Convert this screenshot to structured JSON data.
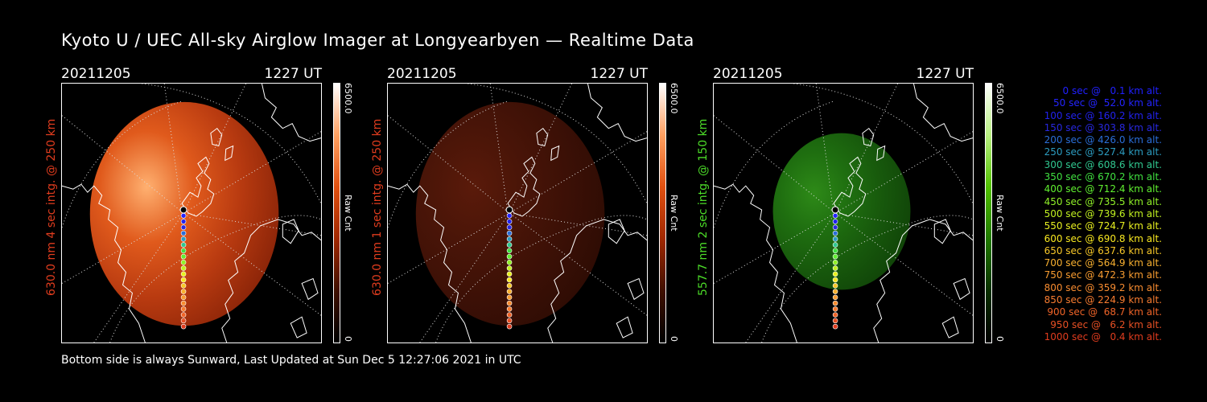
{
  "title": "Kyoto U / UEC All-sky Airglow Imager at Longyearbyen — Realtime Data",
  "footer": "Bottom side is always Sunward, Last Updated at Sun Dec  5 12:27:06 2021 in UTC",
  "panels": [
    {
      "date": "20211205",
      "time": "1227 UT",
      "label": "630.0 nm 4 sec intg. @ 250 km",
      "label_color": "#e03c1e",
      "colorbar_max": "6500.0",
      "colorbar_min": "0",
      "colorbar_unit": "Raw Cnt",
      "tint": "red-bright"
    },
    {
      "date": "20211205",
      "time": "1227 UT",
      "label": "630.0 nm 1 sec intg. @ 250 km",
      "label_color": "#e03c1e",
      "colorbar_max": "6500.0",
      "colorbar_min": "0",
      "colorbar_unit": "Raw Cnt",
      "tint": "red-dim"
    },
    {
      "date": "20211205",
      "time": "1227 UT",
      "label": "557.7 nm 2 sec intg. @ 150 km",
      "label_color": "#4cdc28",
      "colorbar_max": "6500.0",
      "colorbar_min": "0",
      "colorbar_unit": "Raw Cnt",
      "tint": "green"
    }
  ],
  "legend": [
    {
      "text": "0 sec @   0.1 km alt.",
      "color": "#2020ff"
    },
    {
      "text": "50 sec @  52.0 km alt.",
      "color": "#2424ff"
    },
    {
      "text": "100 sec @ 160.2 km alt.",
      "color": "#2222ee"
    },
    {
      "text": "150 sec @ 303.8 km alt.",
      "color": "#2828e0"
    },
    {
      "text": "200 sec @ 426.0 km alt.",
      "color": "#2a6ed8"
    },
    {
      "text": "250 sec @ 527.4 km alt.",
      "color": "#2c9cc0"
    },
    {
      "text": "300 sec @ 608.6 km alt.",
      "color": "#30c890"
    },
    {
      "text": "350 sec @ 670.2 km alt.",
      "color": "#40e040"
    },
    {
      "text": "400 sec @ 712.4 km alt.",
      "color": "#60f030"
    },
    {
      "text": "450 sec @ 735.5 km alt.",
      "color": "#90f028"
    },
    {
      "text": "500 sec @ 739.6 km alt.",
      "color": "#c0f020"
    },
    {
      "text": "550 sec @ 724.7 km alt.",
      "color": "#e8f020"
    },
    {
      "text": "600 sec @ 690.8 km alt.",
      "color": "#f8e820"
    },
    {
      "text": "650 sec @ 637.6 km alt.",
      "color": "#f8c828"
    },
    {
      "text": "700 sec @ 564.9 km alt.",
      "color": "#f8b030"
    },
    {
      "text": "750 sec @ 472.3 km alt.",
      "color": "#f89c30"
    },
    {
      "text": "800 sec @ 359.2 km alt.",
      "color": "#f88c30"
    },
    {
      "text": "850 sec @ 224.9 km alt.",
      "color": "#f87c30"
    },
    {
      "text": "900 sec @  68.7 km alt.",
      "color": "#f06428"
    },
    {
      "text": "950 sec @   6.2 km alt.",
      "color": "#e85024"
    },
    {
      "text": "1000 sec @   0.4 km alt.",
      "color": "#e03c1e"
    }
  ]
}
